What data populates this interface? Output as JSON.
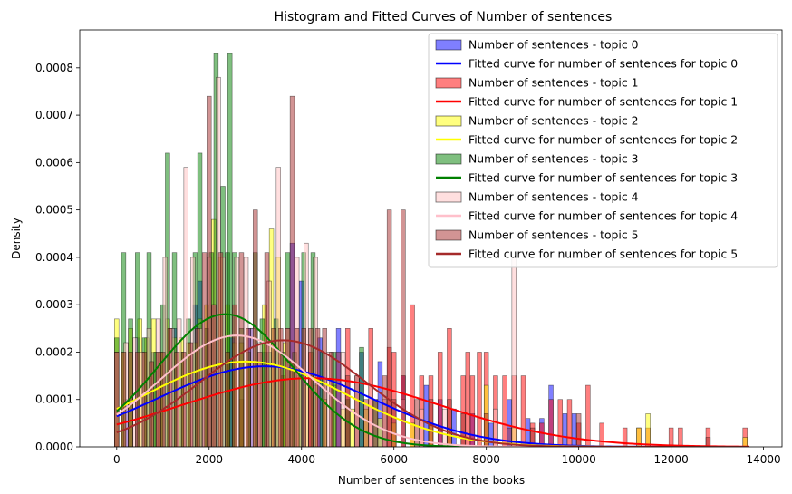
{
  "chart_data": {
    "type": "bar",
    "title": "Histogram and Fitted Curves of Number of sentences",
    "xlabel": "Number of sentences in the books",
    "ylabel": "Density",
    "xlim": [
      -800,
      14400
    ],
    "ylim": [
      0,
      0.00088
    ],
    "xticks": [
      0,
      2000,
      4000,
      6000,
      8000,
      10000,
      12000,
      14000
    ],
    "xtick_labels": [
      "0",
      "2000",
      "4000",
      "6000",
      "8000",
      "10000",
      "12000",
      "14000"
    ],
    "yticks": [
      0,
      0.0001,
      0.0002,
      0.0003,
      0.0004,
      0.0005,
      0.0006,
      0.0007,
      0.0008
    ],
    "ytick_labels": [
      "0.0000",
      "0.0001",
      "0.0002",
      "0.0003",
      "0.0004",
      "0.0005",
      "0.0006",
      "0.0007",
      "0.0008"
    ],
    "grid": false,
    "legend_position": "top-right",
    "bar_width": 95,
    "series": [
      {
        "name": "Number of sentences - topic 0",
        "kind": "histogram",
        "color": "#0000ff",
        "bins": [
          [
            0,
            0.0002
          ],
          [
            200,
            0.0001
          ],
          [
            450,
            0.00023
          ],
          [
            800,
            0.0002
          ],
          [
            1250,
            0.00025
          ],
          [
            1700,
            0.0003
          ],
          [
            1800,
            0.00035
          ],
          [
            2100,
            0.0003
          ],
          [
            2500,
            0.00023
          ],
          [
            2900,
            0.00025
          ],
          [
            3200,
            0.0002
          ],
          [
            3800,
            0.00043
          ],
          [
            4000,
            0.00035
          ],
          [
            4400,
            0.00023
          ],
          [
            4800,
            0.00025
          ],
          [
            5300,
            0.0002
          ],
          [
            5700,
            0.00018
          ],
          [
            6200,
            0.00015
          ],
          [
            6700,
            0.00013
          ],
          [
            7000,
            0.0001
          ],
          [
            7300,
            8e-05
          ],
          [
            7700,
            7e-05
          ],
          [
            8100,
            5e-05
          ],
          [
            8500,
            0.0001
          ],
          [
            8900,
            6e-05
          ],
          [
            9200,
            6e-05
          ],
          [
            9400,
            0.00013
          ],
          [
            9700,
            7e-05
          ],
          [
            9900,
            7e-05
          ]
        ]
      },
      {
        "name": "Fitted curve for number of sentences for topic 0",
        "kind": "curve",
        "color": "#0000ff",
        "mean": 3200,
        "sd": 2300,
        "peak": 0.00017
      },
      {
        "name": "Number of sentences - topic 1",
        "kind": "histogram",
        "color": "#ff0000",
        "bins": [
          [
            0,
            5e-05
          ],
          [
            900,
            0.0001
          ],
          [
            1800,
            0.00015
          ],
          [
            2700,
            0.0001
          ],
          [
            3600,
            0.00015
          ],
          [
            4200,
            0.0002
          ],
          [
            5000,
            0.00025
          ],
          [
            5500,
            0.00025
          ],
          [
            5900,
            0.00021
          ],
          [
            6000,
            0.0002
          ],
          [
            6200,
            0.00015
          ],
          [
            6400,
            0.0003
          ],
          [
            6600,
            0.00015
          ],
          [
            6800,
            0.00015
          ],
          [
            7000,
            0.0002
          ],
          [
            7200,
            0.00025
          ],
          [
            7500,
            0.00015
          ],
          [
            7600,
            0.0002
          ],
          [
            7700,
            0.00015
          ],
          [
            7850,
            0.0002
          ],
          [
            8000,
            0.0002
          ],
          [
            8200,
            0.00015
          ],
          [
            8400,
            0.00015
          ],
          [
            8600,
            0.00015
          ],
          [
            8800,
            0.00015
          ],
          [
            9000,
            5e-05
          ],
          [
            9200,
            5e-05
          ],
          [
            9400,
            0.0001
          ],
          [
            9600,
            0.0001
          ],
          [
            9800,
            0.0001
          ],
          [
            10000,
            5e-05
          ],
          [
            10200,
            0.00013
          ],
          [
            10500,
            5e-05
          ],
          [
            11000,
            4e-05
          ],
          [
            11300,
            4e-05
          ],
          [
            11500,
            4e-05
          ],
          [
            12000,
            4e-05
          ],
          [
            12200,
            4e-05
          ],
          [
            12800,
            4e-05
          ],
          [
            13600,
            4e-05
          ]
        ]
      },
      {
        "name": "Fitted curve for number of sentences for topic 1",
        "kind": "curve",
        "color": "#ff0000",
        "mean": 4200,
        "sd": 2800,
        "peak": 0.000145
      },
      {
        "name": "Number of sentences - topic 2",
        "kind": "histogram",
        "color": "#ffff00",
        "bins": [
          [
            0,
            0.00027
          ],
          [
            150,
            0.0002
          ],
          [
            300,
            0.00025
          ],
          [
            500,
            0.00027
          ],
          [
            650,
            0.00023
          ],
          [
            800,
            0.00027
          ],
          [
            950,
            0.0002
          ],
          [
            1100,
            0.00027
          ],
          [
            1250,
            0.00023
          ],
          [
            1400,
            0.00023
          ],
          [
            1550,
            0.00022
          ],
          [
            1700,
            0.00022
          ],
          [
            1800,
            0.00027
          ],
          [
            1950,
            0.0003
          ],
          [
            2100,
            0.00048
          ],
          [
            2250,
            0.0004
          ],
          [
            2400,
            0.0003
          ],
          [
            2550,
            0.00022
          ],
          [
            2700,
            0.00022
          ],
          [
            2850,
            0.00018
          ],
          [
            3000,
            0.00018
          ],
          [
            3200,
            0.0003
          ],
          [
            3350,
            0.00046
          ],
          [
            3500,
            0.0004
          ],
          [
            3650,
            0.00022
          ],
          [
            3800,
            0.00018
          ],
          [
            3950,
            0.00015
          ],
          [
            4100,
            0.00013
          ],
          [
            4300,
            0.00013
          ],
          [
            4500,
            0.0001
          ],
          [
            4700,
            0.00013
          ],
          [
            4900,
            8e-05
          ],
          [
            5100,
            8e-05
          ],
          [
            5400,
            8e-05
          ],
          [
            5700,
            6e-05
          ],
          [
            6000,
            5e-05
          ],
          [
            6400,
            5e-05
          ],
          [
            6800,
            5e-05
          ],
          [
            7200,
            4e-05
          ],
          [
            8000,
            0.00013
          ],
          [
            8600,
            4e-05
          ],
          [
            11500,
            7e-05
          ],
          [
            11300,
            4e-05
          ],
          [
            13600,
            2e-05
          ]
        ]
      },
      {
        "name": "Fitted curve for number of sentences for topic 2",
        "kind": "curve",
        "color": "#ffff00",
        "mean": 2800,
        "sd": 2200,
        "peak": 0.00018
      },
      {
        "name": "Number of sentences - topic 3",
        "kind": "histogram",
        "color": "#008000",
        "bins": [
          [
            0,
            0.00023
          ],
          [
            150,
            0.00041
          ],
          [
            300,
            0.00027
          ],
          [
            450,
            0.00041
          ],
          [
            600,
            0.00023
          ],
          [
            700,
            0.00041
          ],
          [
            850,
            0.0002
          ],
          [
            1000,
            0.0003
          ],
          [
            1100,
            0.00062
          ],
          [
            1250,
            0.00041
          ],
          [
            1400,
            0.0002
          ],
          [
            1550,
            0.00027
          ],
          [
            1700,
            0.00041
          ],
          [
            1800,
            0.00062
          ],
          [
            1950,
            0.00025
          ],
          [
            2050,
            0.00041
          ],
          [
            2150,
            0.00083
          ],
          [
            2300,
            0.00055
          ],
          [
            2400,
            0.00041
          ],
          [
            2450,
            0.00083
          ],
          [
            2550,
            0.00041
          ],
          [
            2700,
            0.00025
          ],
          [
            2850,
            0.0002
          ],
          [
            3000,
            0.00041
          ],
          [
            3150,
            0.00027
          ],
          [
            3300,
            0.0002
          ],
          [
            3450,
            0.00027
          ],
          [
            3600,
            0.0002
          ],
          [
            3700,
            0.00041
          ],
          [
            3850,
            0.0002
          ],
          [
            4050,
            0.00041
          ],
          [
            4250,
            0.00041
          ],
          [
            4450,
            0.0002
          ],
          [
            4700,
            0.0002
          ],
          [
            5000,
            0.0001
          ],
          [
            5300,
            0.00021
          ],
          [
            5600,
            0.0001
          ]
        ]
      },
      {
        "name": "Fitted curve for number of sentences for topic 3",
        "kind": "curve",
        "color": "#008000",
        "mean": 2350,
        "sd": 1450,
        "peak": 0.00028
      },
      {
        "name": "Number of sentences - topic 4",
        "kind": "histogram",
        "color": "#ffc0c0",
        "bins": [
          [
            0,
            0.0002
          ],
          [
            200,
            0.00022
          ],
          [
            400,
            0.00023
          ],
          [
            550,
            0.0002
          ],
          [
            700,
            0.00025
          ],
          [
            900,
            0.00027
          ],
          [
            1050,
            0.0004
          ],
          [
            1200,
            0.00025
          ],
          [
            1350,
            0.00027
          ],
          [
            1500,
            0.00059
          ],
          [
            1650,
            0.0004
          ],
          [
            1800,
            0.00025
          ],
          [
            2000,
            0.0004
          ],
          [
            2100,
            0.0003
          ],
          [
            2200,
            0.00078
          ],
          [
            2300,
            0.0004
          ],
          [
            2600,
            0.0004
          ],
          [
            2800,
            0.0004
          ],
          [
            2950,
            0.00025
          ],
          [
            3100,
            0.00022
          ],
          [
            3300,
            0.00035
          ],
          [
            3500,
            0.00059
          ],
          [
            3700,
            0.00025
          ],
          [
            3900,
            0.0004
          ],
          [
            4100,
            0.00043
          ],
          [
            4300,
            0.0004
          ],
          [
            4600,
            0.0002
          ],
          [
            4900,
            0.0002
          ],
          [
            5200,
            0.00015
          ],
          [
            5500,
            0.00013
          ],
          [
            5800,
            0.0001
          ],
          [
            6200,
            0.0001
          ],
          [
            6600,
            8e-05
          ],
          [
            7100,
            8e-05
          ],
          [
            8200,
            8e-05
          ],
          [
            8600,
            0.0004
          ]
        ]
      },
      {
        "name": "Fitted curve for number of sentences for topic 4",
        "kind": "curve",
        "color": "#ffc0cb",
        "mean": 2600,
        "sd": 1650,
        "peak": 0.000235
      },
      {
        "name": "Number of sentences - topic 5",
        "kind": "histogram",
        "color": "#a52a2a",
        "bins": [
          [
            0,
            0.0002
          ],
          [
            150,
            0.0002
          ],
          [
            300,
            0.0002
          ],
          [
            450,
            0.0002
          ],
          [
            600,
            0.0002
          ],
          [
            750,
            0.00018
          ],
          [
            900,
            0.0002
          ],
          [
            1000,
            0.0002
          ],
          [
            1150,
            0.00025
          ],
          [
            1300,
            0.0002
          ],
          [
            1450,
            0.0002
          ],
          [
            1600,
            0.00022
          ],
          [
            1750,
            0.00025
          ],
          [
            1900,
            0.00041
          ],
          [
            2000,
            0.00074
          ],
          [
            2100,
            0.0003
          ],
          [
            2250,
            0.00041
          ],
          [
            2400,
            0.0002
          ],
          [
            2550,
            0.0003
          ],
          [
            2700,
            0.00041
          ],
          [
            2850,
            0.00025
          ],
          [
            3000,
            0.0005
          ],
          [
            3100,
            0.0002
          ],
          [
            3250,
            0.00041
          ],
          [
            3400,
            0.00025
          ],
          [
            3550,
            0.00025
          ],
          [
            3700,
            0.00025
          ],
          [
            3800,
            0.00074
          ],
          [
            3900,
            0.00025
          ],
          [
            4050,
            0.00025
          ],
          [
            4200,
            0.00025
          ],
          [
            4350,
            0.00025
          ],
          [
            4500,
            0.00025
          ],
          [
            4650,
            0.0002
          ],
          [
            4800,
            0.0002
          ],
          [
            5000,
            0.00015
          ],
          [
            5200,
            0.00015
          ],
          [
            5400,
            0.0001
          ],
          [
            5600,
            0.0001
          ],
          [
            5800,
            0.00015
          ],
          [
            5900,
            0.0005
          ],
          [
            6000,
            0.0001
          ],
          [
            6200,
            0.0005
          ],
          [
            6500,
            0.0001
          ],
          [
            6800,
            0.0001
          ],
          [
            7200,
            0.0001
          ],
          [
            7500,
            7e-05
          ],
          [
            8000,
            7e-05
          ],
          [
            8500,
            4e-05
          ],
          [
            9000,
            4e-05
          ],
          [
            10000,
            7e-05
          ],
          [
            12800,
            2e-05
          ]
        ]
      },
      {
        "name": "Fitted curve for number of sentences for topic 5",
        "kind": "curve",
        "color": "#a52a2a",
        "mean": 3600,
        "sd": 1800,
        "peak": 0.000225
      }
    ]
  }
}
